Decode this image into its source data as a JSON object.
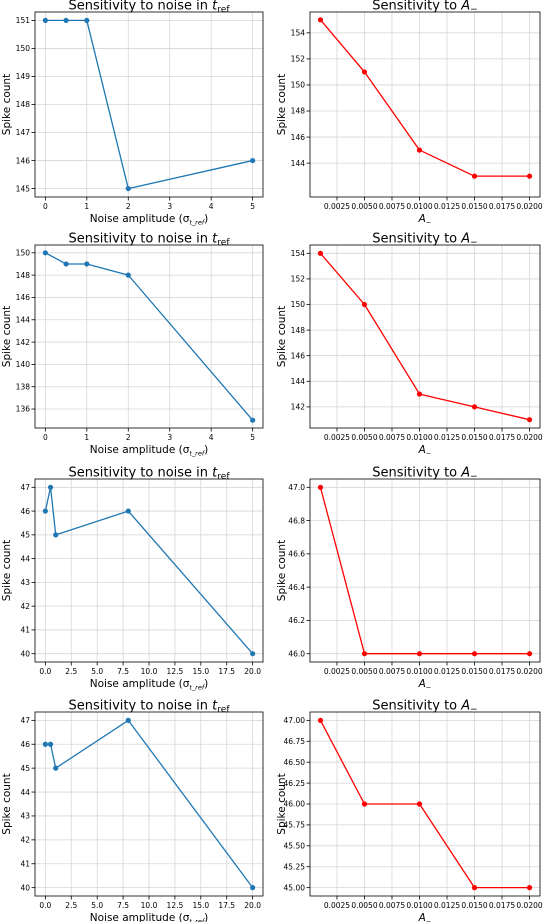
{
  "colors": {
    "blue": "#1f77b4",
    "red": "#ff0000",
    "grid": "#d6d6d6",
    "axis": "#000000"
  },
  "chart_data": [
    {
      "type": "line",
      "title": "Sensitivity to noise in t_ref",
      "title_main": "Sensitivity to noise in ",
      "title_math": "t",
      "title_sub": "ref",
      "xlabel": "Noise amplitude (σ",
      "xlabel_sub": "t_ref",
      "xlabel_end": ")",
      "ylabel": "Spike count",
      "color": "#1f77b4",
      "x": [
        0,
        0.5,
        1,
        2,
        5
      ],
      "y": [
        151,
        151,
        151,
        145,
        146
      ],
      "xlim": [
        -0.25,
        5.25
      ],
      "ylim": [
        144.7,
        151.3
      ],
      "xticks": [
        0,
        1,
        2,
        3,
        4,
        5
      ],
      "xtick_labels": [
        "0",
        "1",
        "2",
        "3",
        "4",
        "5"
      ],
      "yticks": [
        145,
        146,
        147,
        148,
        149,
        150,
        151
      ],
      "ytick_labels": [
        "145",
        "146",
        "147",
        "148",
        "149",
        "150",
        "151"
      ],
      "grid": true
    },
    {
      "type": "line",
      "title": "Sensitivity to A_−",
      "title_main": "Sensitivity to ",
      "title_math": "A",
      "title_sub": "−",
      "xlabel": "A",
      "xlabel_sub": "−",
      "xlabel_end": "",
      "ylabel": "Spike count",
      "color": "#ff0000",
      "x": [
        0.001,
        0.005,
        0.01,
        0.015,
        0.02
      ],
      "y": [
        155,
        151,
        145,
        143,
        143
      ],
      "xlim": [
        5e-05,
        0.02095
      ],
      "ylim": [
        141.4,
        155.6
      ],
      "xticks": [
        0.0025,
        0.005,
        0.0075,
        0.01,
        0.0125,
        0.015,
        0.0175,
        0.02
      ],
      "xtick_labels": [
        "0.0025",
        "0.0050",
        "0.0075",
        "0.0100",
        "0.0125",
        "0.0150",
        "0.0175",
        "0.0200"
      ],
      "yticks": [
        144,
        146,
        148,
        150,
        152,
        154
      ],
      "ytick_labels": [
        "144",
        "146",
        "148",
        "150",
        "152",
        "154"
      ],
      "grid": true
    },
    {
      "type": "line",
      "title": "Sensitivity to noise in t_ref",
      "title_main": "Sensitivity to noise in ",
      "title_math": "t",
      "title_sub": "ref",
      "xlabel": "Noise amplitude (σ",
      "xlabel_sub": "t_ref",
      "xlabel_end": ")",
      "ylabel": "Spike count",
      "color": "#1f77b4",
      "x": [
        0,
        0.5,
        1,
        2,
        5
      ],
      "y": [
        150,
        149,
        149,
        148,
        135
      ],
      "xlim": [
        -0.25,
        5.25
      ],
      "ylim": [
        134.3,
        150.7
      ],
      "xticks": [
        0,
        1,
        2,
        3,
        4,
        5
      ],
      "xtick_labels": [
        "0",
        "1",
        "2",
        "3",
        "4",
        "5"
      ],
      "yticks": [
        136,
        138,
        140,
        142,
        144,
        146,
        148,
        150
      ],
      "ytick_labels": [
        "136",
        "138",
        "140",
        "142",
        "144",
        "146",
        "148",
        "150"
      ],
      "grid": true
    },
    {
      "type": "line",
      "title": "Sensitivity to A_−",
      "title_main": "Sensitivity to ",
      "title_math": "A",
      "title_sub": "−",
      "xlabel": "A",
      "xlabel_sub": "−",
      "xlabel_end": "",
      "ylabel": "Spike count",
      "color": "#ff0000",
      "x": [
        0.001,
        0.005,
        0.01,
        0.015,
        0.02
      ],
      "y": [
        154,
        150,
        143,
        142,
        141
      ],
      "xlim": [
        5e-05,
        0.02095
      ],
      "ylim": [
        140.35,
        154.65
      ],
      "xticks": [
        0.0025,
        0.005,
        0.0075,
        0.01,
        0.0125,
        0.015,
        0.0175,
        0.02
      ],
      "xtick_labels": [
        "0.0025",
        "0.0050",
        "0.0075",
        "0.0100",
        "0.0125",
        "0.0150",
        "0.0175",
        "0.0200"
      ],
      "yticks": [
        142,
        144,
        146,
        148,
        150,
        152,
        154
      ],
      "ytick_labels": [
        "142",
        "144",
        "146",
        "148",
        "150",
        "152",
        "154"
      ],
      "grid": true
    },
    {
      "type": "line",
      "title": "Sensitivity to noise in t_ref",
      "title_main": "Sensitivity to noise in ",
      "title_math": "t",
      "title_sub": "ref",
      "xlabel": "Noise amplitude (σ",
      "xlabel_sub": "t_ref",
      "xlabel_end": ")",
      "ylabel": "Spike count",
      "color": "#1f77b4",
      "x": [
        0,
        0.5,
        1,
        8,
        20
      ],
      "y": [
        46,
        47,
        45,
        46,
        40
      ],
      "xlim": [
        -1,
        21
      ],
      "ylim": [
        39.65,
        47.35
      ],
      "xticks": [
        0,
        2.5,
        5,
        7.5,
        10,
        12.5,
        15,
        17.5,
        20
      ],
      "xtick_labels": [
        "0.0",
        "2.5",
        "5.0",
        "7.5",
        "10.0",
        "12.5",
        "15.0",
        "17.5",
        "20.0"
      ],
      "yticks": [
        40,
        41,
        42,
        43,
        44,
        45,
        46,
        47
      ],
      "ytick_labels": [
        "40",
        "41",
        "42",
        "43",
        "44",
        "45",
        "46",
        "47"
      ],
      "grid": true
    },
    {
      "type": "line",
      "title": "Sensitivity to A_−",
      "title_main": "Sensitivity to ",
      "title_math": "A",
      "title_sub": "−",
      "xlabel": "A",
      "xlabel_sub": "−",
      "xlabel_end": "",
      "ylabel": "Spike count",
      "color": "#ff0000",
      "x": [
        0.001,
        0.005,
        0.01,
        0.015,
        0.02
      ],
      "y": [
        47.0,
        46.0,
        46.0,
        46.0,
        46.0
      ],
      "xlim": [
        5e-05,
        0.02095
      ],
      "ylim": [
        45.95,
        47.05
      ],
      "xticks": [
        0.0025,
        0.005,
        0.0075,
        0.01,
        0.0125,
        0.015,
        0.0175,
        0.02
      ],
      "xtick_labels": [
        "0.0025",
        "0.0050",
        "0.0075",
        "0.0100",
        "0.0125",
        "0.0150",
        "0.0175",
        "0.0200"
      ],
      "yticks": [
        46.0,
        46.2,
        46.4,
        46.6,
        46.8,
        47.0
      ],
      "ytick_labels": [
        "46.0",
        "46.2",
        "46.4",
        "46.6",
        "46.8",
        "47.0"
      ],
      "grid": true
    },
    {
      "type": "line",
      "title": "Sensitivity to noise in t_ref",
      "title_main": "Sensitivity to noise in ",
      "title_math": "t",
      "title_sub": "ref",
      "xlabel": "Noise amplitude (σ",
      "xlabel_sub": "t_ref",
      "xlabel_end": ")",
      "ylabel": "Spike count",
      "color": "#1f77b4",
      "x": [
        0,
        0.5,
        1,
        8,
        20
      ],
      "y": [
        46,
        46,
        45,
        47,
        40
      ],
      "xlim": [
        -1,
        21
      ],
      "ylim": [
        39.65,
        47.35
      ],
      "xticks": [
        0,
        2.5,
        5,
        7.5,
        10,
        12.5,
        15,
        17.5,
        20
      ],
      "xtick_labels": [
        "0.0",
        "2.5",
        "5.0",
        "7.5",
        "10.0",
        "12.5",
        "15.0",
        "17.5",
        "20.0"
      ],
      "yticks": [
        40,
        41,
        42,
        43,
        44,
        45,
        46,
        47
      ],
      "ytick_labels": [
        "40",
        "41",
        "42",
        "43",
        "44",
        "45",
        "46",
        "47"
      ],
      "grid": true
    },
    {
      "type": "line",
      "title": "Sensitivity to A_−",
      "title_main": "Sensitivity to ",
      "title_math": "A",
      "title_sub": "−",
      "xlabel": "A",
      "xlabel_sub": "−",
      "xlabel_end": "",
      "ylabel": "Spike count",
      "color": "#ff0000",
      "x": [
        0.001,
        0.005,
        0.01,
        0.015,
        0.02
      ],
      "y": [
        47.0,
        46.0,
        46.0,
        45.0,
        45.0
      ],
      "xlim": [
        5e-05,
        0.02095
      ],
      "ylim": [
        44.9,
        47.1
      ],
      "xticks": [
        0.0025,
        0.005,
        0.0075,
        0.01,
        0.0125,
        0.015,
        0.0175,
        0.02
      ],
      "xtick_labels": [
        "0.0025",
        "0.0050",
        "0.0075",
        "0.0100",
        "0.0125",
        "0.0150",
        "0.0175",
        "0.0200"
      ],
      "yticks": [
        45.0,
        45.25,
        45.5,
        45.75,
        46.0,
        46.25,
        46.5,
        46.75,
        47.0
      ],
      "ytick_labels": [
        "45.00",
        "45.25",
        "45.50",
        "45.75",
        "46.00",
        "46.25",
        "46.50",
        "46.75",
        "47.00"
      ],
      "grid": true
    }
  ]
}
